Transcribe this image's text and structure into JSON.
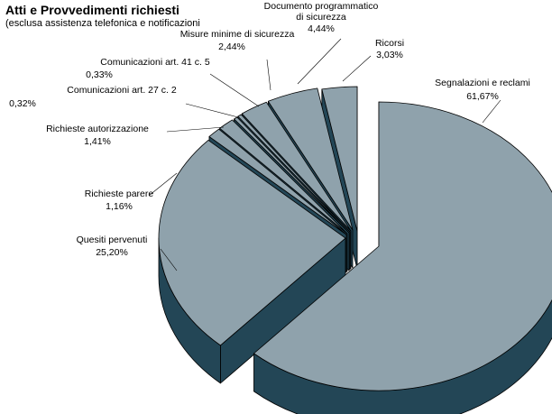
{
  "chart_data": {
    "type": "pie",
    "title": "Atti e Provvedimenti richiesti",
    "subtitle": "(esclusa assistenza telefonica e notificazioni",
    "style": "3d-exploded",
    "colors": {
      "top": "#8fa2ac",
      "side": "#234656",
      "edge": "#000000"
    },
    "slices": [
      {
        "name": "Segnalazioni e reclami",
        "value_text": "61,67%",
        "value": 61.67
      },
      {
        "name": "Quesiti pervenuti",
        "value_text": "25,20%",
        "value": 25.2
      },
      {
        "name": "Richieste parere",
        "value_text": "1,16%",
        "value": 1.16
      },
      {
        "name": "Richieste autorizzazione",
        "value_text": "1,41%",
        "value": 1.41
      },
      {
        "name": "Comunicazioni art. 27 c. 2",
        "value_text": "0,32%",
        "value": 0.32
      },
      {
        "name": "Comunicazioni art. 41 c. 5",
        "value_text": "0,33%",
        "value": 0.33
      },
      {
        "name": "Misure minime di sicurezza",
        "value_text": "2,44%",
        "value": 2.44
      },
      {
        "name": "Documento programmatico di sicurezza",
        "value_text": "4,44%",
        "value": 4.44
      },
      {
        "name": "Ricorsi",
        "value_text": "3,03%",
        "value": 3.03
      }
    ]
  }
}
